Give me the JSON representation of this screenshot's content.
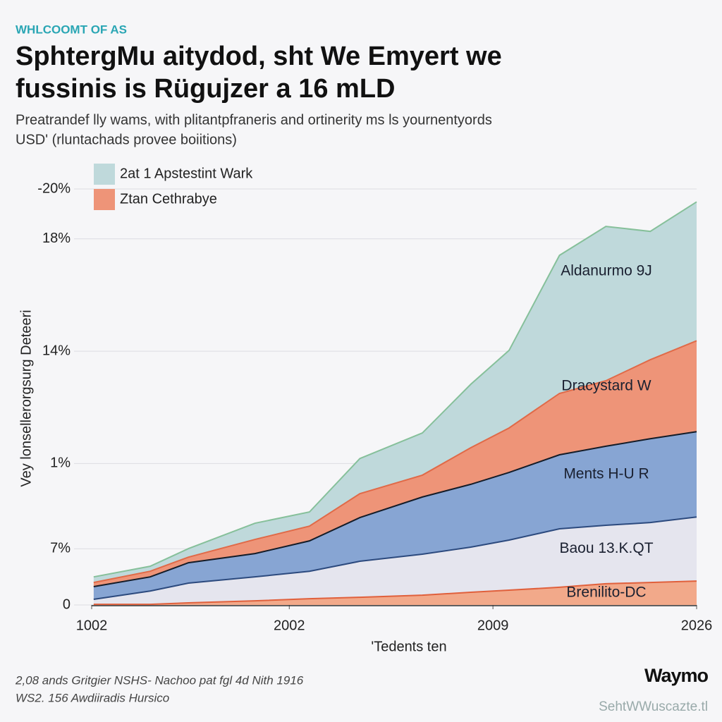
{
  "kicker": "WHLCOOMT OF AS",
  "footer": {
    "lines": [
      "2,08 ands Gritgier NSHS- Nachoo pat fgl 4d Nith 1916",
      "WS2. 156 Awdiiradis Hursico"
    ],
    "brand": "Waymo",
    "credit": "SehtWWuscazte.tl"
  },
  "chart_data": {
    "type": "stacked_area",
    "title": [
      "SphtergMu aitydod, sht We Emyert we",
      "fussinis is Rügujzer a 16 mLD"
    ],
    "subtitle": [
      "Preatrandef lly wams, with plitantpfraneris and ortinerity ms ls yournentyords",
      "USD' (rluntachads provee boiitions)"
    ],
    "y_label": "Vey lonsellerorgsurg Deteeri",
    "x_label": "'Tedents ten",
    "legend_entries": [
      {
        "label": "2at 1 Apstestint Wark",
        "color": "#bfd9db"
      },
      {
        "label": "Ztan Cethrabye",
        "color": "#ee9478"
      }
    ],
    "x": [
      0.1,
      2.9,
      4.8,
      8.1,
      10.8,
      13.3,
      16.4,
      18.8,
      20.7,
      23.2,
      25.5,
      27.7,
      30
    ],
    "xlim": [
      0,
      30
    ],
    "xticks": [
      {
        "value": 0,
        "label": "1002"
      },
      {
        "value": 9.8,
        "label": "2002"
      },
      {
        "value": 19.9,
        "label": "2009"
      },
      {
        "value": 30,
        "label": "2026"
      }
    ],
    "ylim": [
      0,
      20
    ],
    "yticks": [
      {
        "value": 20,
        "label": "-20%"
      },
      {
        "value": 17.6,
        "label": "18%"
      },
      {
        "value": 12.2,
        "label": "14%"
      },
      {
        "value": 6.8,
        "label": "1%"
      },
      {
        "value": 2.7,
        "label": "7%"
      },
      0
    ],
    "grid": true,
    "series": [
      {
        "name": "Brenilito-DC",
        "color": "#f2a98a",
        "line_color": "#e0603c",
        "values": [
          0.03,
          0.03,
          0.1,
          0.2,
          0.3,
          0.37,
          0.47,
          0.61,
          0.71,
          0.85,
          1.02,
          1.08,
          1.15
        ]
      },
      {
        "name": "Baou 13.K.QT",
        "color": "#e5e5ee",
        "line_color": "#2c4a7e",
        "values": [
          0.24,
          0.64,
          0.95,
          1.15,
          1.32,
          1.73,
          1.97,
          2.17,
          2.41,
          2.81,
          2.81,
          2.88,
          3.08
        ]
      },
      {
        "name": "Ments H-U R",
        "color": "#87a5d3",
        "line_color": "#141c28",
        "values": [
          0.61,
          0.68,
          0.98,
          1.12,
          1.46,
          2.1,
          2.75,
          3.02,
          3.25,
          3.56,
          3.8,
          4.03,
          4.1
        ]
      },
      {
        "name": "Dracystard W",
        "color": "#ee9478",
        "line_color": "#e06a48",
        "values": [
          0.2,
          0.27,
          0.27,
          0.68,
          0.71,
          1.15,
          1.05,
          1.76,
          2.14,
          2.95,
          3.15,
          3.8,
          4.37
        ]
      },
      {
        "name": "Aldanurmo 9J",
        "color": "#bfd9db",
        "line_color": "#86c09a",
        "values": [
          0.27,
          0.24,
          0.41,
          0.78,
          0.68,
          1.69,
          2.03,
          3.05,
          3.73,
          6.64,
          7.42,
          6.17,
          6.68
        ]
      }
    ]
  }
}
